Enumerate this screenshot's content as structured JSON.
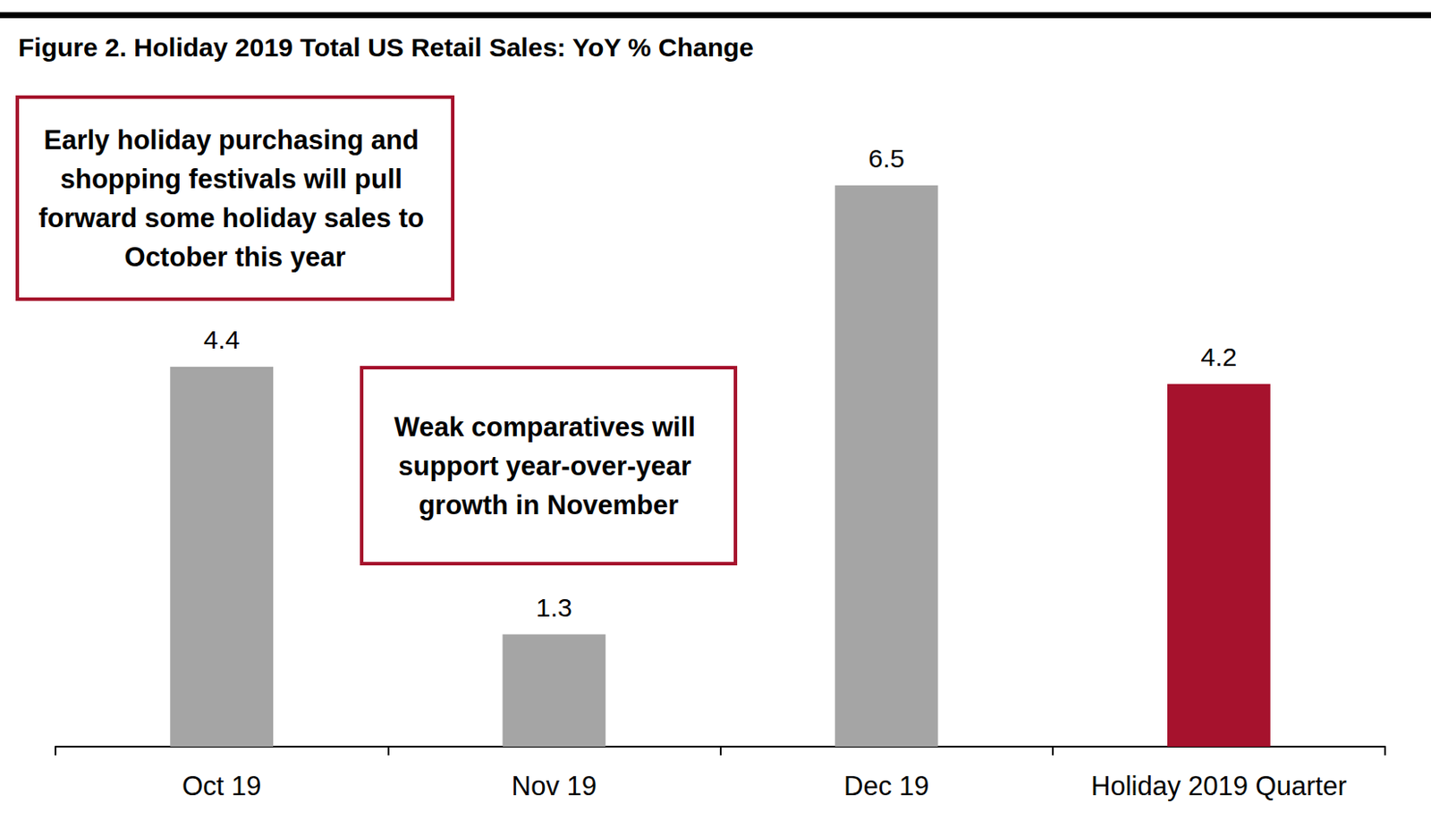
{
  "chart_data": {
    "type": "bar",
    "title": "Figure 2. Holiday 2019 Total US Retail Sales: YoY % Change",
    "categories": [
      "Oct 19",
      "Nov 19",
      "Dec 19",
      "Holiday 2019 Quarter"
    ],
    "values": [
      4.4,
      1.3,
      6.5,
      4.2
    ],
    "colors": [
      "#a5a5a5",
      "#a5a5a5",
      "#a5a5a5",
      "#a6122d"
    ],
    "ylim": [
      0,
      7
    ],
    "grid": false,
    "data_labels": true,
    "tick_labels": "x",
    "annotations": [
      {
        "text": "Early holiday purchasing and shopping festivals will pull forward some holiday sales to October this year"
      },
      {
        "text": "Weak comparatives will support year-over-year growth in November"
      }
    ]
  }
}
